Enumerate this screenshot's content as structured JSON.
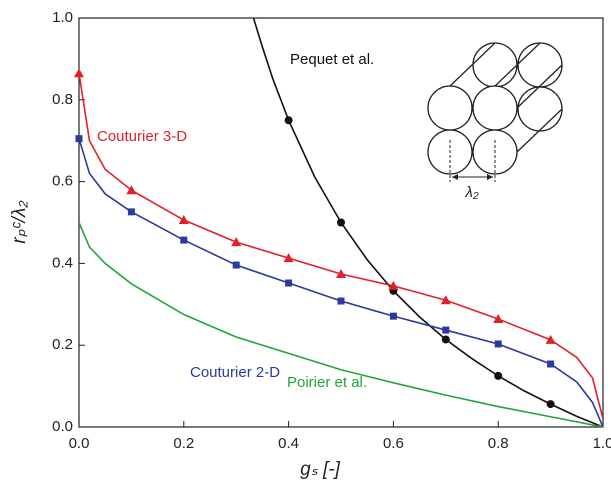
{
  "chart_data": {
    "type": "line",
    "x_label": "gₛ [-]",
    "y_label": "rₚᶜ/λ₂",
    "inset_label": "λ₂",
    "xlim": [
      0,
      1
    ],
    "ylim": [
      0,
      1
    ],
    "xticks": [
      {
        "value": 0,
        "label": "0.0"
      },
      0.2,
      0.4,
      0.6,
      0.8,
      {
        "value": 1,
        "label": "1.0"
      }
    ],
    "yticks": [
      {
        "value": 0,
        "label": "0.0"
      },
      0.2,
      0.4,
      0.6,
      0.8,
      {
        "value": 1,
        "label": "1.0"
      }
    ],
    "series": [
      {
        "name": "Pequet et al.",
        "color": "#111111",
        "marker": "circle",
        "x": [
          0.333,
          0.35,
          0.37,
          0.4,
          0.45,
          0.5,
          0.55,
          0.6,
          0.65,
          0.7,
          0.75,
          0.8,
          0.85,
          0.9,
          0.95,
          1.0
        ],
        "values": [
          1.0,
          0.929,
          0.851,
          0.75,
          0.611,
          0.5,
          0.409,
          0.333,
          0.269,
          0.214,
          0.167,
          0.125,
          0.088,
          0.056,
          0.026,
          0.0
        ]
      },
      {
        "name": "Couturier 3-D",
        "color": "#e0202a",
        "marker": "triangle",
        "x": [
          0,
          0.02,
          0.05,
          0.1,
          0.2,
          0.3,
          0.4,
          0.5,
          0.6,
          0.7,
          0.8,
          0.9,
          0.95,
          0.98,
          1.0
        ],
        "values": [
          0.865,
          0.7,
          0.63,
          0.579,
          0.506,
          0.452,
          0.413,
          0.374,
          0.345,
          0.31,
          0.264,
          0.213,
          0.17,
          0.12,
          0.02
        ]
      },
      {
        "name": "Couturier 2-D",
        "color": "#2b3a9c",
        "marker": "square",
        "x": [
          0,
          0.02,
          0.05,
          0.1,
          0.2,
          0.3,
          0.4,
          0.5,
          0.6,
          0.7,
          0.8,
          0.9,
          0.95,
          0.98,
          1.0
        ],
        "values": [
          0.705,
          0.62,
          0.57,
          0.526,
          0.457,
          0.396,
          0.352,
          0.308,
          0.271,
          0.237,
          0.203,
          0.154,
          0.11,
          0.06,
          0.0
        ]
      },
      {
        "name": "Poirier et al.",
        "color": "#22a53a",
        "marker": "none",
        "x": [
          0,
          0.02,
          0.05,
          0.1,
          0.2,
          0.3,
          0.4,
          0.5,
          0.6,
          0.7,
          0.8,
          0.9,
          1.0
        ],
        "values": [
          0.5,
          0.44,
          0.4,
          0.35,
          0.275,
          0.22,
          0.18,
          0.14,
          0.108,
          0.078,
          0.05,
          0.025,
          0.0
        ]
      }
    ]
  }
}
